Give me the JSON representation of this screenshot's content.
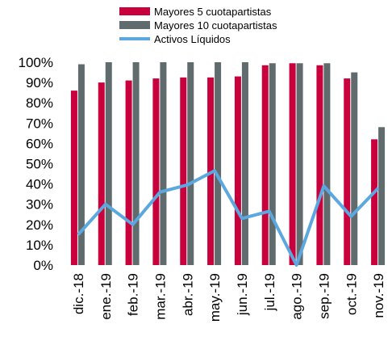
{
  "chart_data": {
    "type": "bar-line",
    "categories": [
      "dic.-18",
      "ene.-19",
      "feb.-19",
      "mar.-19",
      "abr.-19",
      "may.-19",
      "jun.-19",
      "jul.-19",
      "ago.-19",
      "sep.-19",
      "oct.-19",
      "nov.-19"
    ],
    "series": [
      {
        "name": "Mayores 5 cuotapartistas",
        "type": "bar",
        "color": "#c8003c",
        "values": [
          86,
          90,
          91,
          92,
          92.5,
          92.5,
          93,
          98.5,
          99.5,
          98.5,
          92,
          62
        ]
      },
      {
        "name": "Mayores 10 cuotapartistas",
        "type": "bar",
        "color": "#5f6b6d",
        "values": [
          99,
          100,
          100,
          100,
          100,
          100,
          100,
          99.5,
          99.5,
          99.5,
          95,
          68
        ]
      },
      {
        "name": "Activos Líquidos",
        "type": "line",
        "color": "#5ba8e0",
        "values": [
          15,
          30,
          20,
          36,
          39.5,
          46.5,
          23,
          26.5,
          0,
          39,
          24,
          38
        ]
      }
    ],
    "ylim": [
      0,
      100
    ],
    "yticks": [
      {
        "value": 0,
        "label": "0%"
      },
      {
        "value": 10,
        "label": "10%"
      },
      {
        "value": 20,
        "label": "20%"
      },
      {
        "value": 30,
        "label": "30%"
      },
      {
        "value": 40,
        "label": "40%"
      },
      {
        "value": 50,
        "label": "50%"
      },
      {
        "value": 60,
        "label": "60%"
      },
      {
        "value": 70,
        "label": "70%"
      },
      {
        "value": 80,
        "label": "80%"
      },
      {
        "value": 90,
        "label": "90%"
      },
      {
        "value": 100,
        "label": "100%"
      }
    ],
    "grid": false,
    "legend": "top"
  }
}
